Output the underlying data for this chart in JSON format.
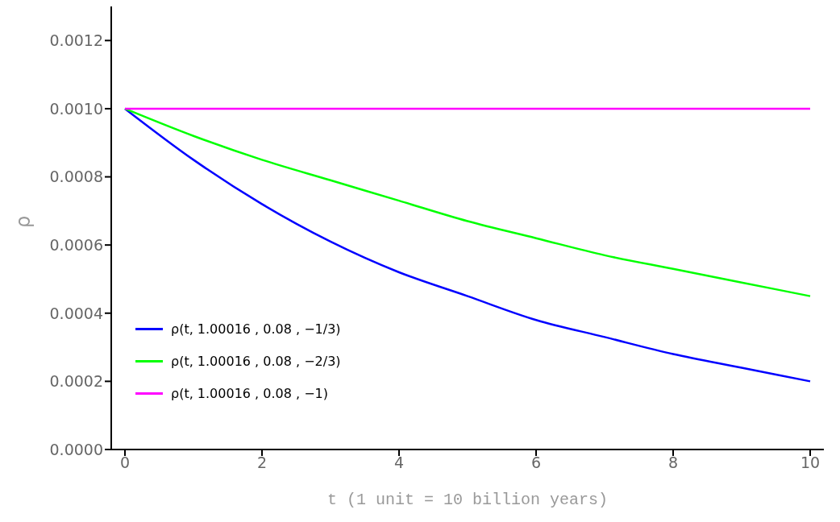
{
  "chart_data": {
    "type": "line",
    "xlabel": "t  (1 unit = 10  billion years)",
    "ylabel": "ρ",
    "x": [
      0,
      1,
      2,
      3,
      4,
      5,
      6,
      7,
      8,
      9,
      10
    ],
    "series": [
      {
        "name": "ρ(t, 1.00016 , 0.08 , −1/3)",
        "color": "#0000ff",
        "values": [
          0.001,
          0.00085,
          0.00072,
          0.00061,
          0.00052,
          0.00045,
          0.00038,
          0.00033,
          0.00028,
          0.00024,
          0.0002
        ]
      },
      {
        "name": "ρ(t, 1.00016 , 0.08 , −2/3)",
        "color": "#00ff00",
        "values": [
          0.001,
          0.00092,
          0.00085,
          0.00079,
          0.00073,
          0.00067,
          0.00062,
          0.00057,
          0.00053,
          0.00049,
          0.00045
        ]
      },
      {
        "name": "ρ(t, 1.00016 , 0.08 , −1)",
        "color": "#ff00ff",
        "values": [
          0.001,
          0.001,
          0.001,
          0.001,
          0.001,
          0.001,
          0.001,
          0.001,
          0.001,
          0.001,
          0.001
        ]
      }
    ],
    "xlim": [
      -0.2,
      10.2
    ],
    "xticks": [
      0,
      2,
      4,
      6,
      8,
      10
    ],
    "ylim": [
      0,
      0.0013
    ],
    "yticks": [
      {
        "value": 0,
        "label": "0.0000"
      },
      {
        "value": 0.0002,
        "label": "0.0002"
      },
      {
        "value": 0.0004,
        "label": "0.0004"
      },
      {
        "value": 0.0006,
        "label": "0.0006"
      },
      {
        "value": 0.0008,
        "label": "0.0008"
      },
      {
        "value": 0.001,
        "label": "0.0010"
      },
      {
        "value": 0.0012,
        "label": "0.0012"
      }
    ],
    "grid": false,
    "legend": "bottom left",
    "marker": "none",
    "line_style": "solid"
  }
}
